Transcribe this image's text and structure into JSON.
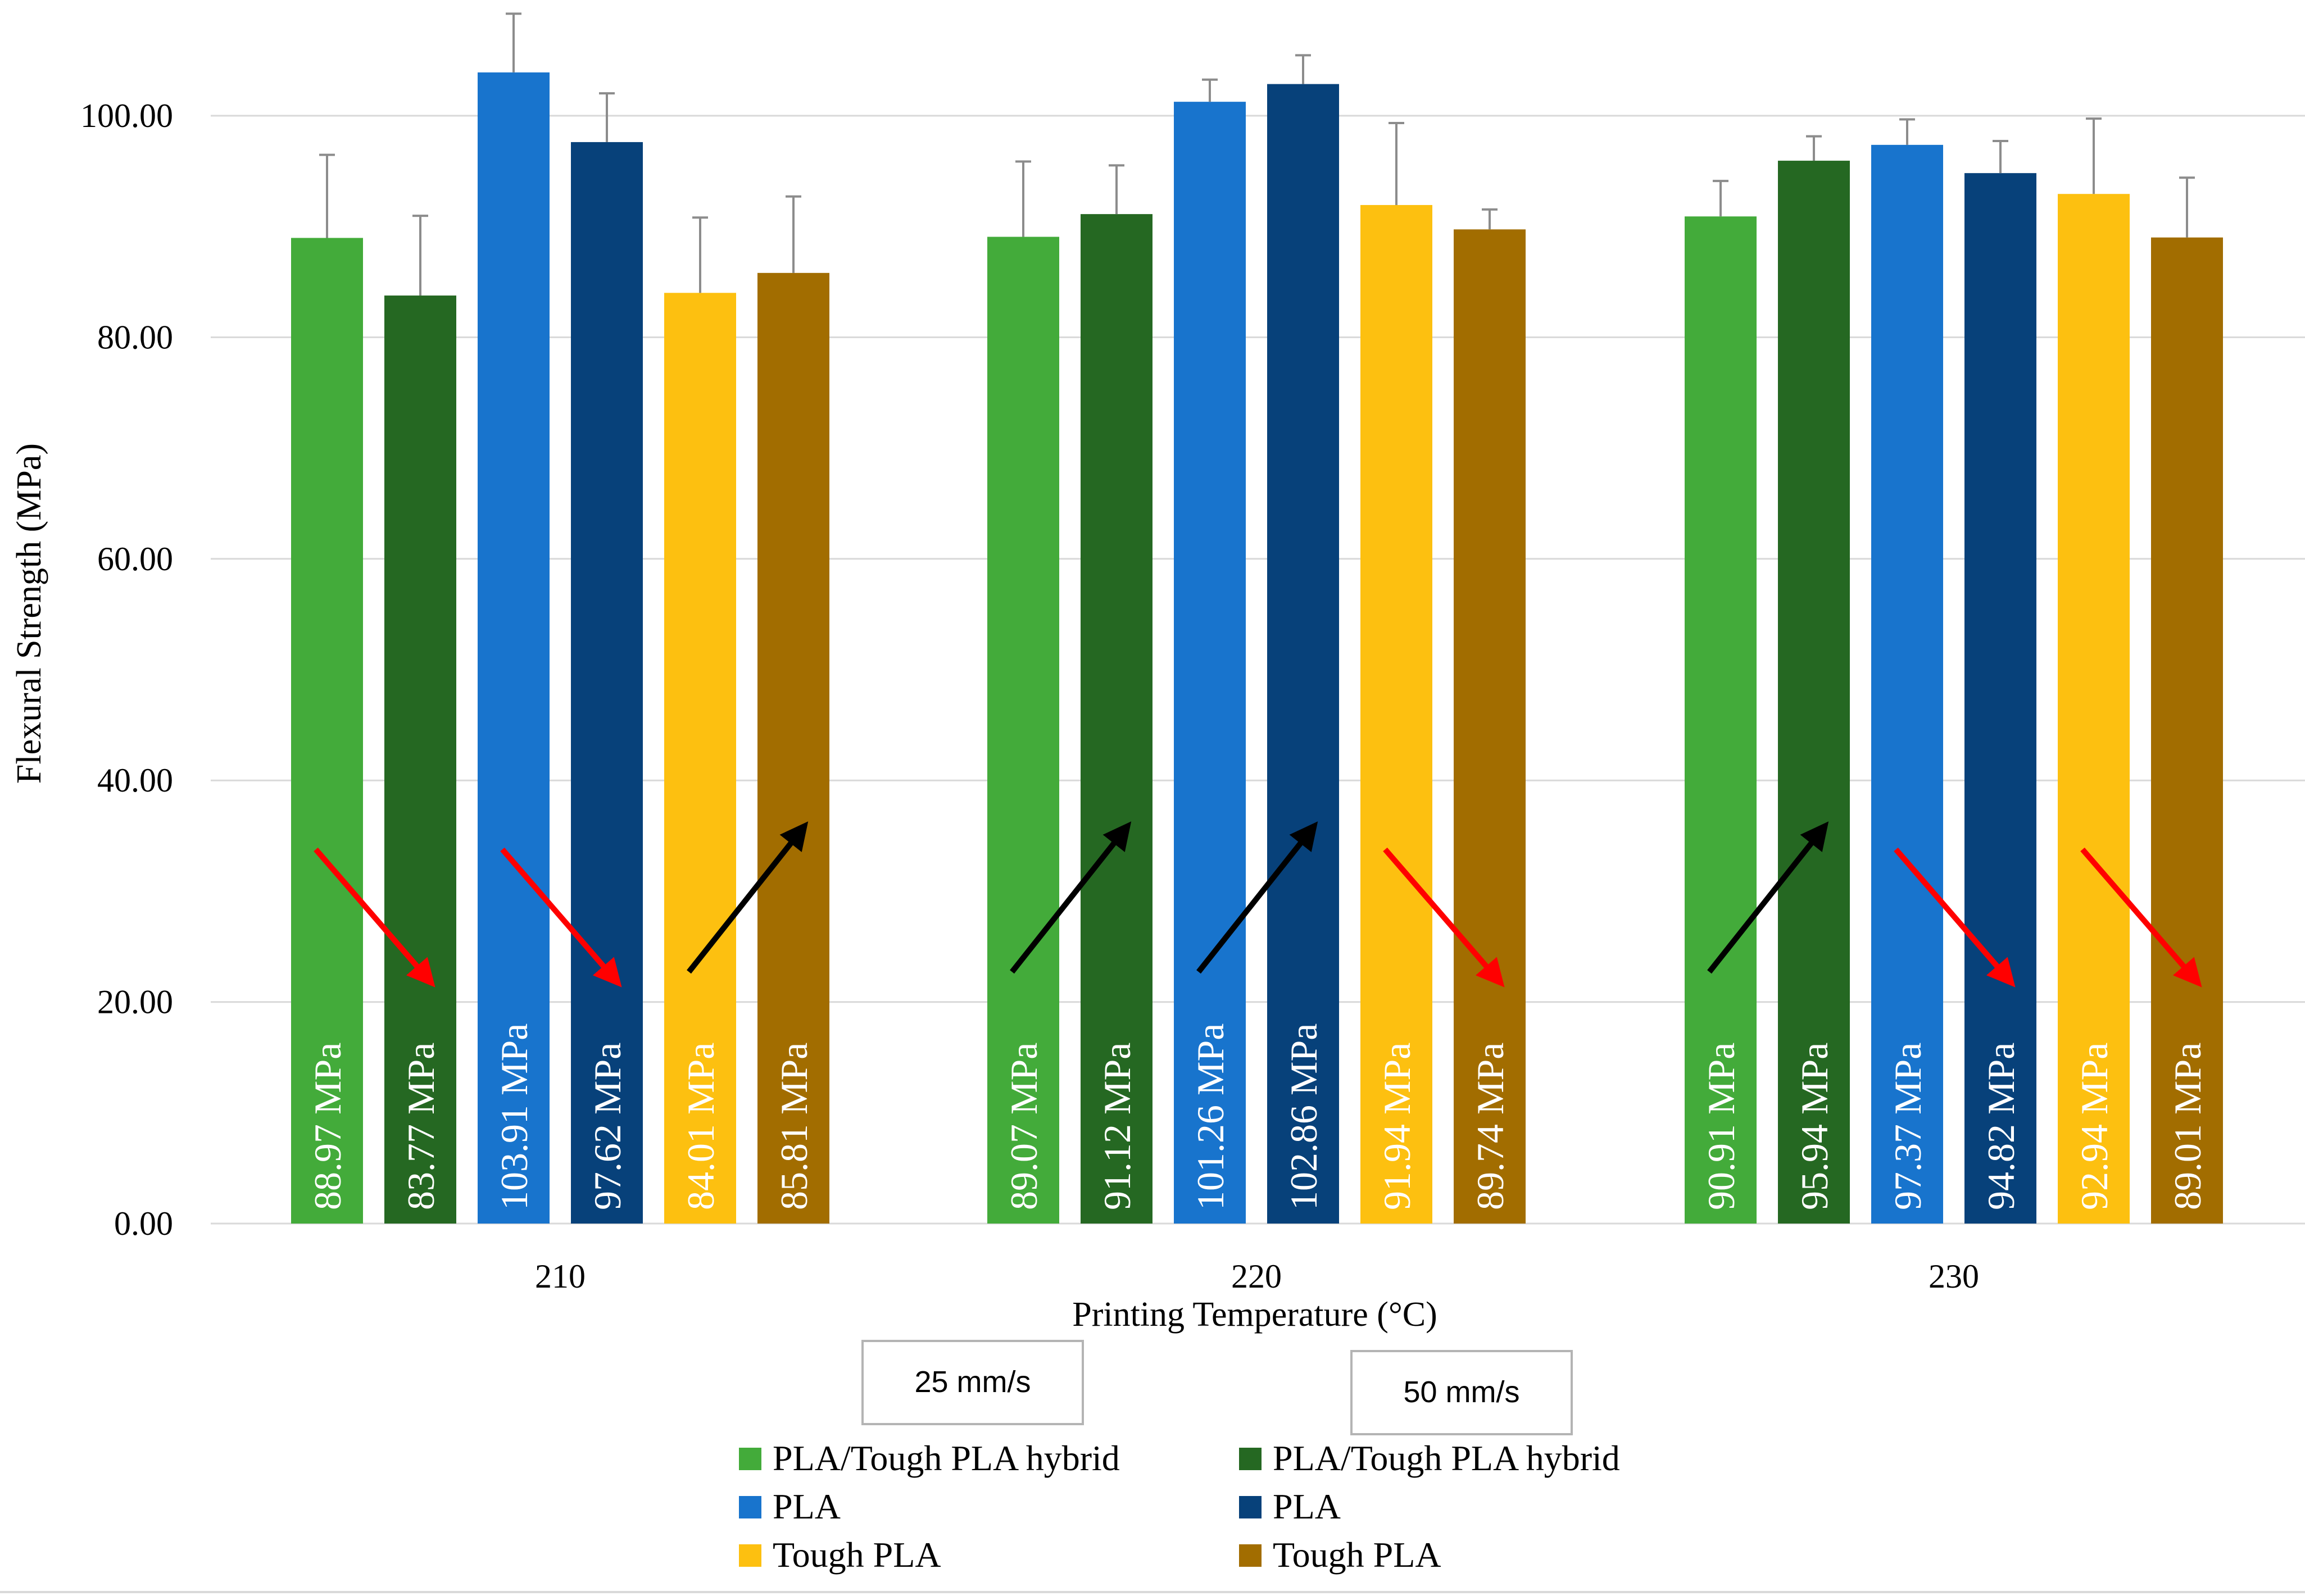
{
  "chart_data": {
    "type": "bar",
    "title": "",
    "xlabel": "Printing Temperature (°C)",
    "ylabel": "Flexural Strength (MPa)",
    "ylim": [
      0,
      110
    ],
    "yticks": [
      "0.00",
      "20.00",
      "40.00",
      "60.00",
      "80.00",
      "100.00"
    ],
    "ytick_values": [
      0,
      20,
      40,
      60,
      80,
      100
    ],
    "grid": true,
    "categories": [
      "210",
      "220",
      "230"
    ],
    "series": [
      {
        "name": "PLA/Tough PLA hybrid",
        "speed": "25 mm/s",
        "color": "#43ab3a",
        "values": [
          88.97,
          89.07,
          90.91
        ],
        "labels": [
          "88.97 MPa",
          "89.07 MPa",
          "90.91 MPa"
        ],
        "error": [
          7.5,
          6.8,
          3.2
        ]
      },
      {
        "name": "PLA/Tough PLA hybrid",
        "speed": "50 mm/s",
        "color": "#256822",
        "values": [
          83.77,
          91.12,
          95.94
        ],
        "labels": [
          "83.77 MPa",
          "91.12 MPa",
          "95.94 MPa"
        ],
        "error": [
          7.2,
          4.4,
          2.2
        ]
      },
      {
        "name": "PLA",
        "speed": "25 mm/s",
        "color": "#1874cd",
        "values": [
          103.91,
          101.26,
          97.37
        ],
        "labels": [
          "103.91  MPa",
          "101.26 MPa",
          "97.37 MPa"
        ],
        "error": [
          5.3,
          2.0,
          2.3
        ]
      },
      {
        "name": "PLA",
        "speed": "50 mm/s",
        "color": "#07417a",
        "values": [
          97.62,
          102.86,
          94.82
        ],
        "labels": [
          "97.62 MPa",
          "102.86 MPa",
          "94.82 MPa"
        ],
        "error": [
          4.4,
          2.6,
          2.9
        ]
      },
      {
        "name": "Tough PLA",
        "speed": "25 mm/s",
        "color": "#fdc010",
        "values": [
          84.01,
          91.94,
          92.94
        ],
        "labels": [
          "84.01 MPa",
          "91.94 MPa",
          "92.94 MPa"
        ],
        "error": [
          6.8,
          7.4,
          6.8
        ]
      },
      {
        "name": "Tough PLA",
        "speed": "50 mm/s",
        "color": "#a26d00",
        "values": [
          85.81,
          89.74,
          89.01
        ],
        "labels": [
          "85.81 MPa",
          "89.74 MPa",
          "89.01 MPa"
        ],
        "error": [
          6.9,
          1.8,
          5.4
        ]
      }
    ],
    "trend_arrows": [
      {
        "category": "210",
        "pair": "hybrid",
        "direction": "down",
        "color": "#ff0000"
      },
      {
        "category": "210",
        "pair": "PLA",
        "direction": "down",
        "color": "#ff0000"
      },
      {
        "category": "210",
        "pair": "Tough PLA",
        "direction": "up",
        "color": "#000000"
      },
      {
        "category": "220",
        "pair": "hybrid",
        "direction": "up",
        "color": "#000000"
      },
      {
        "category": "220",
        "pair": "PLA",
        "direction": "up",
        "color": "#000000"
      },
      {
        "category": "220",
        "pair": "Tough PLA",
        "direction": "down",
        "color": "#ff0000"
      },
      {
        "category": "230",
        "pair": "hybrid",
        "direction": "up",
        "color": "#000000"
      },
      {
        "category": "230",
        "pair": "PLA",
        "direction": "down",
        "color": "#ff0000"
      },
      {
        "category": "230",
        "pair": "Tough PLA",
        "direction": "down",
        "color": "#ff0000"
      }
    ],
    "speed_labels": [
      "25 mm/s",
      "50 mm/s"
    ],
    "legend": {
      "placement": "bottom",
      "columns": [
        [
          "PLA/Tough PLA hybrid",
          "PLA",
          "Tough PLA"
        ],
        [
          "PLA/Tough PLA hybrid",
          "PLA",
          "Tough PLA"
        ]
      ]
    }
  }
}
